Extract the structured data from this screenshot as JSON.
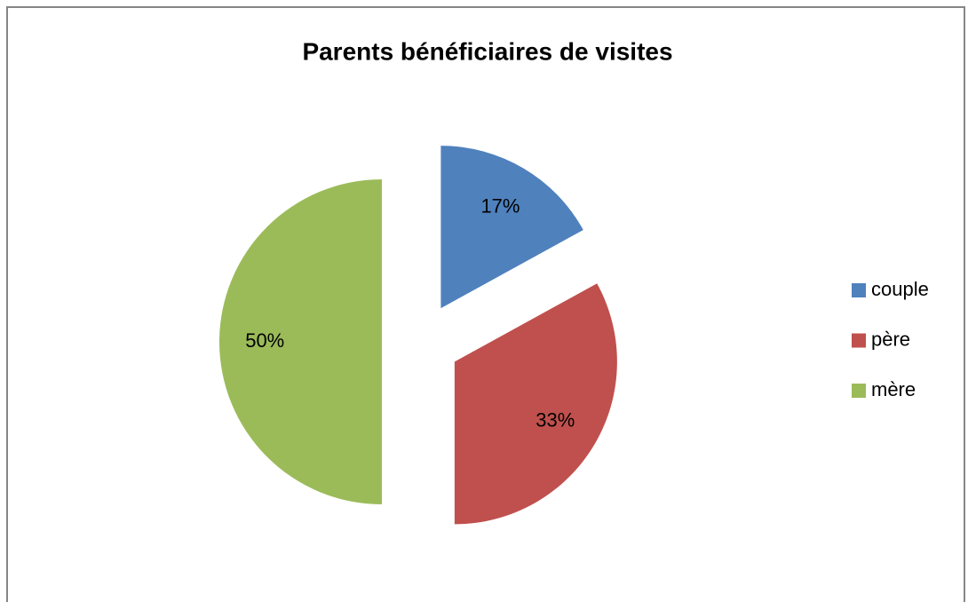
{
  "chart_data": {
    "type": "pie",
    "title": "Parents bénéficiaires de visites",
    "categories": [
      "couple",
      "père",
      "mère"
    ],
    "values": [
      17,
      33,
      50
    ],
    "value_labels": [
      "17%",
      "33%",
      "50%"
    ],
    "colors": [
      "#4f81bd",
      "#c0504d",
      "#9bbb59"
    ],
    "exploded": true,
    "legend": "right"
  }
}
